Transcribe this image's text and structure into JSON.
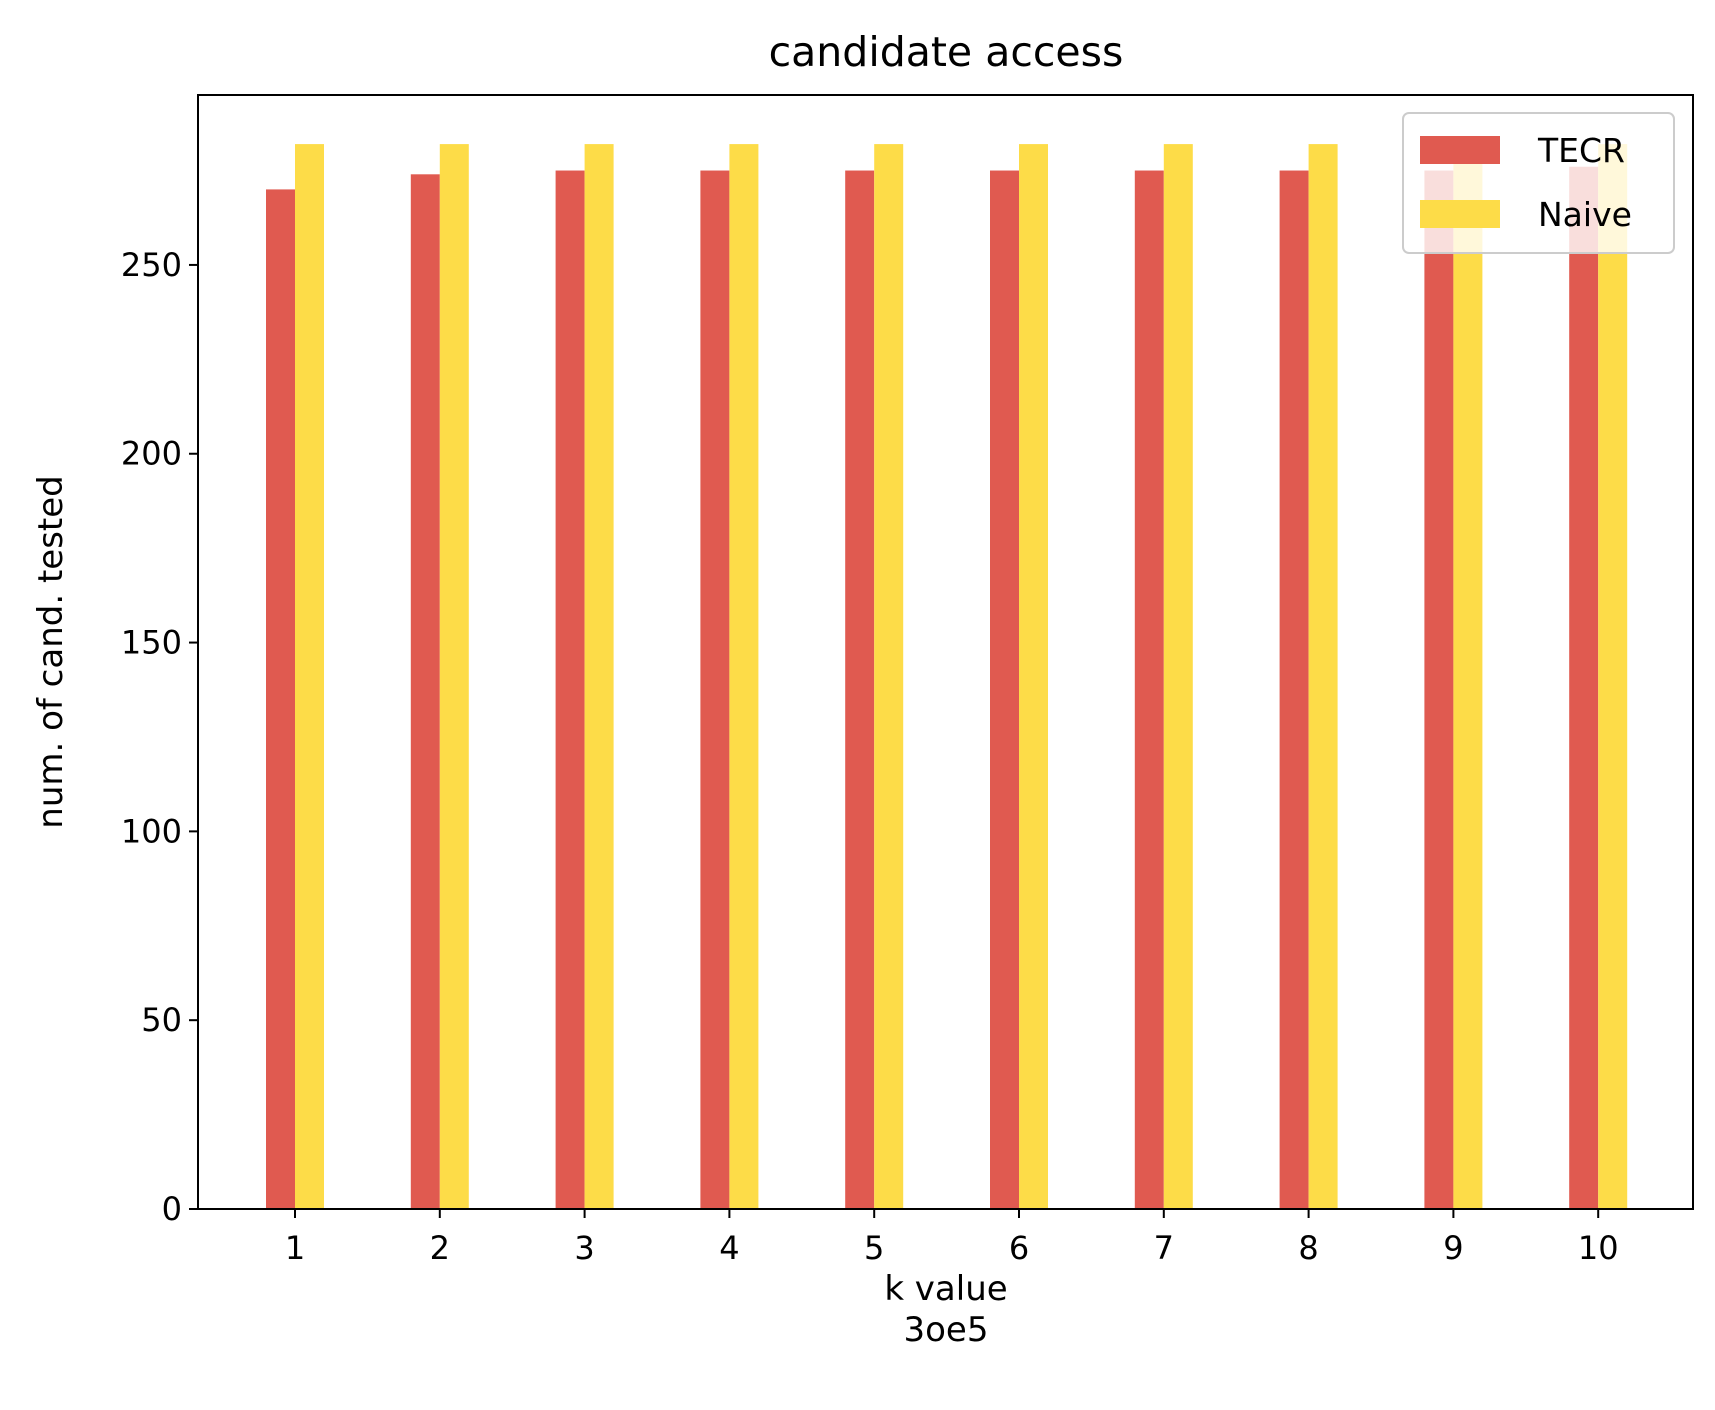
{
  "chart_data": {
    "type": "bar",
    "title": "candidate access",
    "xlabel": "k value",
    "xlabel_sub": "3oe5",
    "ylabel": "num. of cand. tested",
    "categories": [
      "1",
      "2",
      "3",
      "4",
      "5",
      "6",
      "7",
      "8",
      "9",
      "10"
    ],
    "series": [
      {
        "name": "TECR",
        "color": "#e05a50",
        "values": [
          270,
          274,
          275,
          275,
          275,
          275,
          275,
          275,
          275,
          276
        ]
      },
      {
        "name": "Naive",
        "color": "#fddc48",
        "values": [
          282,
          282,
          282,
          282,
          282,
          282,
          282,
          282,
          282,
          282
        ]
      }
    ],
    "ylim": [
      0,
      295
    ],
    "yticks": [
      0,
      50,
      100,
      150,
      200,
      250
    ],
    "legend": "top-right",
    "grid": false
  }
}
